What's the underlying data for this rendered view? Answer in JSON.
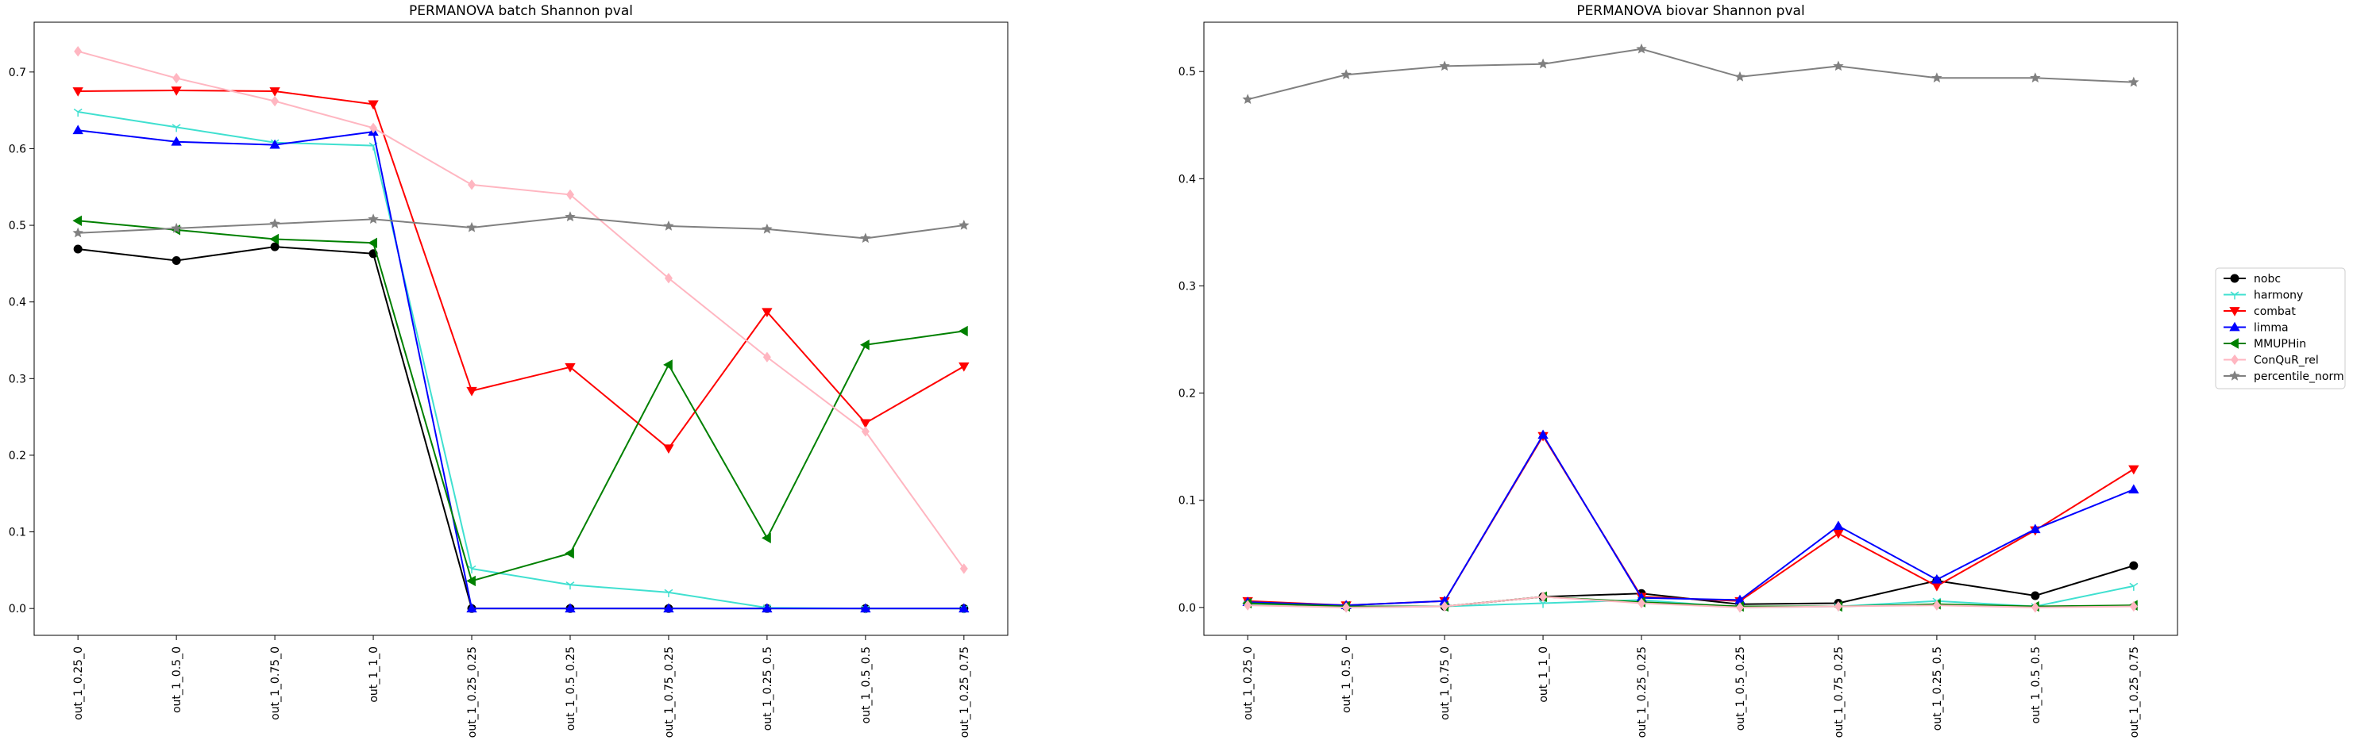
{
  "figure": {
    "legend_location": "right-center"
  },
  "series_styles": [
    {
      "name": "nobc",
      "color": "#000000",
      "marker": "circle"
    },
    {
      "name": "harmony",
      "color": "#40e0d0",
      "marker": "tri_down"
    },
    {
      "name": "combat",
      "color": "#ff0000",
      "marker": "triangle_down"
    },
    {
      "name": "limma",
      "color": "#0000ff",
      "marker": "triangle_up"
    },
    {
      "name": "MMUPHin",
      "color": "#008000",
      "marker": "triangle_left"
    },
    {
      "name": "ConQuR_rel",
      "color": "#ffb6c1",
      "marker": "diamond"
    },
    {
      "name": "percentile_norm",
      "color": "#808080",
      "marker": "star"
    }
  ],
  "chart_data": [
    {
      "type": "line",
      "title": "PERMANOVA batch Shannon pval",
      "xlabel": "",
      "ylabel": "",
      "categories": [
        "out_1_0.25_0",
        "out_1_0.5_0",
        "out_1_0.75_0",
        "out_1_1_0",
        "out_1_0.25_0.25",
        "out_1_0.5_0.25",
        "out_1_0.75_0.25",
        "out_1_0.25_0.5",
        "out_1_0.5_0.5",
        "out_1_0.25_0.75"
      ],
      "ylim": [
        -0.035,
        0.765
      ],
      "yticks": [
        0.0,
        0.1,
        0.2,
        0.3,
        0.4,
        0.5,
        0.6,
        0.7
      ],
      "ytick_labels": [
        "0.0",
        "0.1",
        "0.2",
        "0.3",
        "0.4",
        "0.5",
        "0.6",
        "0.7"
      ],
      "grid": false,
      "series": [
        {
          "name": "nobc",
          "values": [
            0.469,
            0.454,
            0.472,
            0.463,
            0.0,
            0.0,
            0.0,
            0.0,
            0.0,
            0.0
          ]
        },
        {
          "name": "harmony",
          "values": [
            0.648,
            0.628,
            0.608,
            0.604,
            0.052,
            0.031,
            0.021,
            0.001,
            0.0,
            0.0
          ]
        },
        {
          "name": "combat",
          "values": [
            0.675,
            0.676,
            0.675,
            0.658,
            0.284,
            0.315,
            0.209,
            0.387,
            0.242,
            0.316
          ]
        },
        {
          "name": "limma",
          "values": [
            0.624,
            0.609,
            0.605,
            0.622,
            0.0,
            0.0,
            0.0,
            0.0,
            0.0,
            0.0
          ]
        },
        {
          "name": "MMUPHin",
          "values": [
            0.506,
            0.494,
            0.482,
            0.477,
            0.036,
            0.072,
            0.318,
            0.092,
            0.344,
            0.362
          ]
        },
        {
          "name": "ConQuR_rel",
          "values": [
            0.727,
            0.692,
            0.662,
            0.627,
            0.553,
            0.54,
            0.431,
            0.328,
            0.231,
            0.052
          ]
        },
        {
          "name": "percentile_norm",
          "values": [
            0.49,
            0.496,
            0.502,
            0.508,
            0.497,
            0.511,
            0.499,
            0.495,
            0.483,
            0.5
          ]
        }
      ]
    },
    {
      "type": "line",
      "title": "PERMANOVA biovar Shannon pval",
      "xlabel": "",
      "ylabel": "",
      "categories": [
        "out_1_0.25_0",
        "out_1_0.5_0",
        "out_1_0.75_0",
        "out_1_1_0",
        "out_1_0.25_0.25",
        "out_1_0.5_0.25",
        "out_1_0.75_0.25",
        "out_1_0.25_0.5",
        "out_1_0.5_0.5",
        "out_1_0.25_0.75"
      ],
      "ylim": [
        -0.026,
        0.546
      ],
      "yticks": [
        0.0,
        0.1,
        0.2,
        0.3,
        0.4,
        0.5
      ],
      "ytick_labels": [
        "0.0",
        "0.1",
        "0.2",
        "0.3",
        "0.4",
        "0.5"
      ],
      "grid": false,
      "series": [
        {
          "name": "nobc",
          "values": [
            0.004,
            0.001,
            0.001,
            0.01,
            0.013,
            0.003,
            0.004,
            0.025,
            0.011,
            0.039
          ]
        },
        {
          "name": "harmony",
          "values": [
            0.003,
            0.0,
            0.001,
            0.004,
            0.007,
            0.0,
            0.001,
            0.006,
            0.001,
            0.02
          ]
        },
        {
          "name": "combat",
          "values": [
            0.006,
            0.002,
            0.006,
            0.16,
            0.01,
            0.006,
            0.069,
            0.02,
            0.072,
            0.129
          ]
        },
        {
          "name": "limma",
          "values": [
            0.005,
            0.002,
            0.006,
            0.161,
            0.009,
            0.007,
            0.076,
            0.026,
            0.073,
            0.11
          ]
        },
        {
          "name": "MMUPHin",
          "values": [
            0.004,
            0.001,
            0.001,
            0.01,
            0.005,
            0.001,
            0.001,
            0.003,
            0.001,
            0.002
          ]
        },
        {
          "name": "ConQuR_rel",
          "values": [
            0.002,
            0.0,
            0.001,
            0.01,
            0.004,
            0.0,
            0.001,
            0.002,
            0.0,
            0.001
          ]
        },
        {
          "name": "percentile_norm",
          "values": [
            0.474,
            0.497,
            0.505,
            0.507,
            0.521,
            0.495,
            0.505,
            0.494,
            0.494,
            0.49
          ]
        }
      ]
    }
  ]
}
